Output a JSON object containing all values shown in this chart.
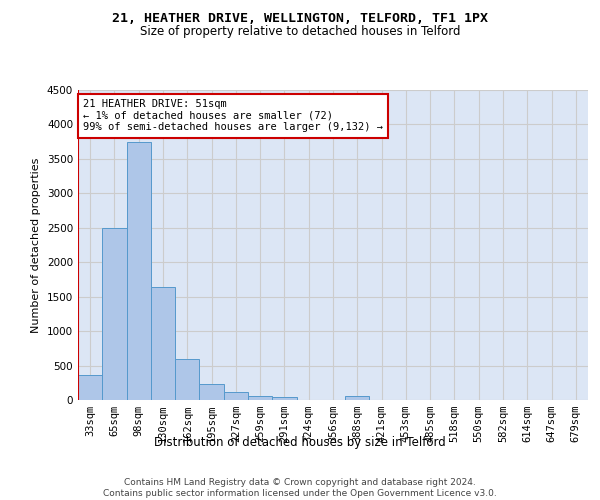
{
  "title1": "21, HEATHER DRIVE, WELLINGTON, TELFORD, TF1 1PX",
  "title2": "Size of property relative to detached houses in Telford",
  "xlabel": "Distribution of detached houses by size in Telford",
  "ylabel": "Number of detached properties",
  "categories": [
    "33sqm",
    "65sqm",
    "98sqm",
    "130sqm",
    "162sqm",
    "195sqm",
    "227sqm",
    "259sqm",
    "291sqm",
    "324sqm",
    "356sqm",
    "388sqm",
    "421sqm",
    "453sqm",
    "485sqm",
    "518sqm",
    "550sqm",
    "582sqm",
    "614sqm",
    "647sqm",
    "679sqm"
  ],
  "values": [
    360,
    2500,
    3750,
    1640,
    590,
    230,
    110,
    65,
    40,
    0,
    0,
    65,
    0,
    0,
    0,
    0,
    0,
    0,
    0,
    0,
    0
  ],
  "bar_color": "#aec6e8",
  "bar_edge_color": "#5599cc",
  "annotation_box_text": "21 HEATHER DRIVE: 51sqm\n← 1% of detached houses are smaller (72)\n99% of semi-detached houses are larger (9,132) →",
  "annotation_box_color": "#ffffff",
  "annotation_box_edge_color": "#cc0000",
  "vline_color": "#cc0000",
  "ylim": [
    0,
    4500
  ],
  "yticks": [
    0,
    500,
    1000,
    1500,
    2000,
    2500,
    3000,
    3500,
    4000,
    4500
  ],
  "grid_color": "#cccccc",
  "bg_color": "#dce6f5",
  "footer_text": "Contains HM Land Registry data © Crown copyright and database right 2024.\nContains public sector information licensed under the Open Government Licence v3.0.",
  "title1_fontsize": 9.5,
  "title2_fontsize": 8.5,
  "xlabel_fontsize": 8.5,
  "ylabel_fontsize": 8,
  "tick_fontsize": 7.5,
  "annotation_fontsize": 7.5,
  "footer_fontsize": 6.5
}
